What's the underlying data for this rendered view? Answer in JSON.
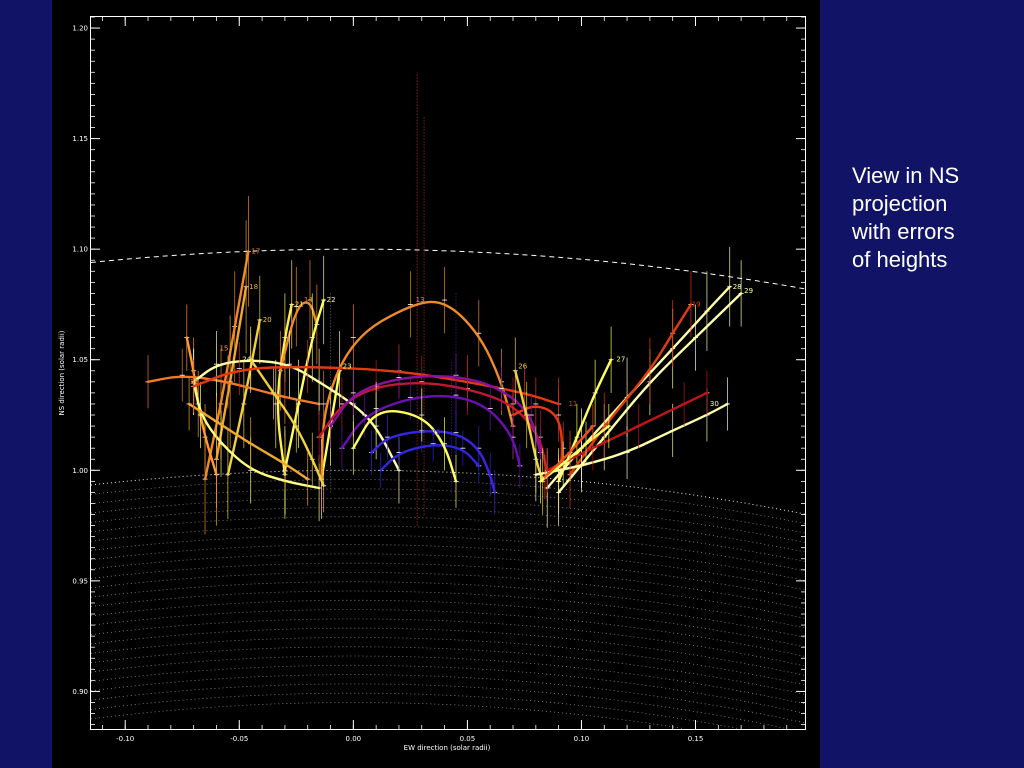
{
  "side_text": [
    "View in NS",
    "projection",
    "with errors",
    "of heights"
  ],
  "colors": {
    "background": "#111466",
    "plot_background": "#000000",
    "axis": "#ffffff",
    "limb": "#ffffff",
    "loop_palette": [
      "#ffffaa",
      "#f0d040",
      "#f08a28",
      "#e33a10",
      "#b01420",
      "#7a10a8",
      "#2e26e0"
    ]
  },
  "chart_data": {
    "type": "line",
    "title": "",
    "xlabel": "EW direction (solar radii)",
    "ylabel": "NS direction (solar radii)",
    "xlim": [
      -0.115,
      0.198
    ],
    "ylim": [
      0.883,
      1.205
    ],
    "x_ticks": [
      {
        "value": -0.1,
        "label": "-0.10"
      },
      {
        "value": -0.05,
        "label": "-0.05"
      },
      {
        "value": 0.0,
        "label": "0.00"
      },
      {
        "value": 0.05,
        "label": "0.05"
      },
      {
        "value": 0.1,
        "label": "0.10"
      },
      {
        "value": 0.15,
        "label": "0.15"
      }
    ],
    "y_ticks": [
      {
        "value": 0.9,
        "label": "0.90"
      },
      {
        "value": 0.95,
        "label": "0.95"
      },
      {
        "value": 1.0,
        "label": "1.00"
      },
      {
        "value": 1.05,
        "label": "1.05"
      },
      {
        "value": 1.1,
        "label": "1.10"
      },
      {
        "value": 1.15,
        "label": "1.15"
      },
      {
        "value": 1.2,
        "label": "1.20"
      }
    ],
    "grid": false,
    "limb_radius": 1.0,
    "reference_radius": 1.1,
    "loops": [
      {
        "label": "17",
        "color": "#f08a28",
        "points": [
          [
            -0.065,
            0.996
          ],
          [
            -0.058,
            1.03
          ],
          [
            -0.052,
            1.065
          ],
          [
            -0.046,
            1.099
          ]
        ],
        "label_at": [
          -0.046,
          1.099
        ],
        "err": 0.025
      },
      {
        "label": "18",
        "color": "#f0a830",
        "points": [
          [
            -0.06,
            1.005
          ],
          [
            -0.054,
            1.04
          ],
          [
            -0.047,
            1.083
          ]
        ],
        "label_at": [
          -0.047,
          1.083
        ],
        "err": 0.03
      },
      {
        "label": "20",
        "color": "#f0d040",
        "points": [
          [
            -0.055,
            0.998
          ],
          [
            -0.048,
            1.03
          ],
          [
            -0.041,
            1.068
          ]
        ],
        "label_at": [
          -0.041,
          1.068
        ],
        "err": 0.02
      },
      {
        "label": "21",
        "color": "#ffee55",
        "points": [
          [
            -0.03,
            0.998
          ],
          [
            -0.034,
            1.03
          ],
          [
            -0.03,
            1.06
          ],
          [
            -0.027,
            1.075
          ]
        ],
        "label_at": [
          -0.027,
          1.075
        ],
        "err": 0.02
      },
      {
        "label": "14",
        "color": "#f08a28",
        "points": [
          [
            -0.032,
            1.045
          ],
          [
            -0.025,
            1.074
          ],
          [
            -0.019,
            1.077
          ],
          [
            -0.016,
            1.066
          ]
        ],
        "label_at": [
          -0.023,
          1.077
        ],
        "err": 0.018
      },
      {
        "label": "22",
        "color": "#ffff60",
        "points": [
          [
            -0.03,
            1.0
          ],
          [
            -0.024,
            1.03
          ],
          [
            -0.018,
            1.06
          ],
          [
            -0.013,
            1.077
          ]
        ],
        "label_at": [
          -0.013,
          1.077
        ],
        "err": 0.02
      },
      {
        "label": "23",
        "color": "#ffff60",
        "points": [
          [
            -0.014,
            0.996
          ],
          [
            -0.01,
            1.02
          ],
          [
            -0.006,
            1.045
          ]
        ],
        "label_at": [
          -0.006,
          1.047
        ],
        "err": 0.018
      },
      {
        "label": "13",
        "color": "#f08a28",
        "points": [
          [
            -0.014,
            0.996
          ],
          [
            -0.013,
            1.03
          ],
          [
            0.0,
            1.06
          ],
          [
            0.025,
            1.075
          ],
          [
            0.04,
            1.077
          ],
          [
            0.055,
            1.062
          ],
          [
            0.065,
            1.04
          ],
          [
            0.07,
            1.02
          ]
        ],
        "label_at": [
          0.026,
          1.077
        ],
        "err": 0.015
      },
      {
        "label": "15",
        "color": "#ff9a30",
        "points": [
          [
            -0.073,
            1.06
          ],
          [
            -0.07,
            1.045
          ],
          [
            -0.068,
            1.03
          ],
          [
            -0.065,
            1.015
          ],
          [
            -0.06,
            0.998
          ]
        ],
        "label_at": [
          -0.06,
          1.055
        ],
        "err": 0.015
      },
      {
        "label": "16",
        "color": "#f07a28",
        "points": [
          [
            -0.09,
            1.04
          ],
          [
            -0.075,
            1.043
          ],
          [
            -0.055,
            1.04
          ],
          [
            -0.03,
            1.033
          ],
          [
            -0.015,
            1.03
          ]
        ],
        "label_at": [
          -0.073,
          1.04
        ],
        "err": 0.012
      },
      {
        "label": "24",
        "color": "#ffffaa",
        "points": [
          [
            -0.07,
            1.04
          ],
          [
            -0.06,
            1.048
          ],
          [
            -0.045,
            1.05
          ],
          [
            -0.028,
            1.048
          ],
          [
            -0.015,
            1.04
          ],
          [
            0.0,
            1.03
          ],
          [
            0.01,
            1.02
          ],
          [
            0.02,
            1.0
          ]
        ],
        "label_at": [
          -0.05,
          1.05
        ],
        "err": 0.015
      },
      {
        "label": "",
        "color": "#ffff80",
        "points": [
          [
            -0.07,
            1.04
          ],
          [
            -0.067,
            1.025
          ],
          [
            -0.058,
            1.012
          ],
          [
            -0.045,
            1.0
          ],
          [
            -0.03,
            0.995
          ],
          [
            -0.015,
            0.992
          ]
        ],
        "label_at": null,
        "err": 0.015
      },
      {
        "label": "",
        "color": "#f0d040",
        "points": [
          [
            -0.045,
            1.05
          ],
          [
            -0.035,
            1.035
          ],
          [
            -0.025,
            1.02
          ],
          [
            -0.018,
            1.005
          ],
          [
            -0.013,
            0.993
          ]
        ],
        "label_at": null,
        "err": 0.012
      },
      {
        "label": "",
        "color": "#f0a830",
        "points": [
          [
            -0.072,
            1.03
          ],
          [
            -0.06,
            1.022
          ],
          [
            -0.045,
            1.012
          ],
          [
            -0.03,
            1.003
          ],
          [
            -0.02,
            0.996
          ]
        ],
        "label_at": null,
        "err": 0.012
      },
      {
        "label": "",
        "color": "#e33a10",
        "points": [
          [
            -0.07,
            1.038
          ],
          [
            -0.05,
            1.046
          ],
          [
            -0.02,
            1.047
          ],
          [
            0.02,
            1.045
          ],
          [
            0.05,
            1.04
          ],
          [
            0.075,
            1.035
          ],
          [
            0.09,
            1.03
          ]
        ],
        "label_at": null,
        "err": 0.012
      },
      {
        "label": "12",
        "color": "#c01830",
        "points": [
          [
            -0.015,
            1.015
          ],
          [
            -0.005,
            1.03
          ],
          [
            0.01,
            1.038
          ],
          [
            0.03,
            1.04
          ],
          [
            0.05,
            1.037
          ],
          [
            0.07,
            1.03
          ],
          [
            0.082,
            1.015
          ],
          [
            0.085,
            0.998
          ]
        ],
        "label_at": [
          0.007,
          1.037
        ],
        "err": 0.012
      },
      {
        "label": "11",
        "color": "#e33a10",
        "points": [
          [
            0.07,
            1.025
          ],
          [
            0.08,
            1.03
          ],
          [
            0.09,
            1.025
          ],
          [
            0.092,
            1.01
          ],
          [
            0.09,
            0.995
          ]
        ],
        "label_at": [
          0.093,
          1.03
        ],
        "err": 0.012
      },
      {
        "label": "",
        "color": "#8a10a0",
        "points": [
          [
            -0.01,
            1.02
          ],
          [
            0.0,
            1.035
          ],
          [
            0.02,
            1.042
          ],
          [
            0.045,
            1.043
          ],
          [
            0.065,
            1.037
          ],
          [
            0.078,
            1.025
          ],
          [
            0.082,
            1.008
          ]
        ],
        "label_at": null,
        "err": 0.01
      },
      {
        "label": "",
        "color": "#6a10b0",
        "points": [
          [
            -0.005,
            1.01
          ],
          [
            0.005,
            1.025
          ],
          [
            0.025,
            1.033
          ],
          [
            0.045,
            1.034
          ],
          [
            0.06,
            1.028
          ],
          [
            0.07,
            1.015
          ],
          [
            0.073,
            1.002
          ]
        ],
        "label_at": null,
        "err": 0.01
      },
      {
        "label": "25",
        "color": "#3a26e0",
        "points": [
          [
            0.008,
            1.008
          ],
          [
            0.015,
            1.015
          ],
          [
            0.03,
            1.018
          ],
          [
            0.045,
            1.017
          ],
          [
            0.055,
            1.01
          ],
          [
            0.06,
            0.998
          ],
          [
            0.062,
            0.99
          ]
        ],
        "label_at": [
          0.033,
          1.017
        ],
        "err": 0.01
      },
      {
        "label": "",
        "color": "#2e26e0",
        "points": [
          [
            0.012,
            1.0
          ],
          [
            0.02,
            1.008
          ],
          [
            0.035,
            1.012
          ],
          [
            0.048,
            1.01
          ],
          [
            0.055,
            1.002
          ]
        ],
        "label_at": null,
        "err": 0.008
      },
      {
        "label": "",
        "color": "#ffff60",
        "points": [
          [
            0.0,
            1.01
          ],
          [
            0.01,
            1.028
          ],
          [
            0.03,
            1.025
          ],
          [
            0.04,
            1.012
          ],
          [
            0.045,
            0.995
          ]
        ],
        "label_at": null,
        "err": 0.012
      },
      {
        "label": "26",
        "color": "#f0d040",
        "points": [
          [
            0.071,
            1.045
          ],
          [
            0.076,
            1.025
          ],
          [
            0.08,
            1.005
          ],
          [
            0.083,
            0.995
          ]
        ],
        "label_at": [
          0.071,
          1.047
        ],
        "err": 0.015
      },
      {
        "label": "27",
        "color": "#ffff60",
        "points": [
          [
            0.09,
            0.995
          ],
          [
            0.098,
            1.015
          ],
          [
            0.106,
            1.035
          ],
          [
            0.113,
            1.05
          ]
        ],
        "label_at": [
          0.114,
          1.05
        ],
        "err": 0.015
      },
      {
        "label": "28",
        "color": "#ffffaa",
        "points": [
          [
            0.085,
            0.992
          ],
          [
            0.1,
            1.01
          ],
          [
            0.12,
            1.033
          ],
          [
            0.14,
            1.055
          ],
          [
            0.155,
            1.072
          ],
          [
            0.165,
            1.083
          ]
        ],
        "label_at": [
          0.165,
          1.083
        ],
        "err": 0.018
      },
      {
        "label": "29",
        "color": "#ffffaa",
        "points": [
          [
            0.09,
            0.99
          ],
          [
            0.11,
            1.015
          ],
          [
            0.13,
            1.04
          ],
          [
            0.15,
            1.06
          ],
          [
            0.17,
            1.08
          ]
        ],
        "label_at": [
          0.17,
          1.081
        ],
        "err": 0.015
      },
      {
        "label": "19",
        "color": "#e33a10",
        "points": [
          [
            0.095,
            0.998
          ],
          [
            0.11,
            1.02
          ],
          [
            0.13,
            1.045
          ],
          [
            0.14,
            1.062
          ],
          [
            0.148,
            1.075
          ]
        ],
        "label_at": [
          0.147,
          1.075
        ],
        "err": 0.015
      },
      {
        "label": "30",
        "color": "#ffffaa",
        "points": [
          [
            0.08,
            0.998
          ],
          [
            0.1,
            1.002
          ],
          [
            0.12,
            1.008
          ],
          [
            0.14,
            1.018
          ],
          [
            0.155,
            1.025
          ],
          [
            0.164,
            1.03
          ]
        ],
        "label_at": [
          0.155,
          1.03
        ],
        "err": 0.012
      },
      {
        "label": "",
        "color": "#c01418",
        "points": [
          [
            0.085,
            1.0
          ],
          [
            0.105,
            1.01
          ],
          [
            0.125,
            1.02
          ],
          [
            0.145,
            1.03
          ],
          [
            0.155,
            1.035
          ]
        ],
        "label_at": null,
        "err": 0.01
      },
      {
        "label": "",
        "color": "#ffff60",
        "points": [
          [
            0.082,
            0.995
          ],
          [
            0.092,
            1.003
          ],
          [
            0.102,
            1.012
          ],
          [
            0.112,
            1.02
          ]
        ],
        "label_at": null,
        "err": 0.01
      },
      {
        "label": "",
        "color": "#f05020",
        "points": [
          [
            0.084,
            0.997
          ],
          [
            0.095,
            1.008
          ],
          [
            0.105,
            1.02
          ]
        ],
        "label_at": null,
        "err": 0.01
      }
    ],
    "vertical_markers": [
      {
        "x": 0.028,
        "y0": 0.975,
        "y1": 1.18,
        "color": "#c03030"
      },
      {
        "x": 0.031,
        "y0": 0.98,
        "y1": 1.16,
        "color": "#c03030"
      },
      {
        "x": 0.043,
        "y0": 0.99,
        "y1": 1.05,
        "color": "#303090"
      },
      {
        "x": 0.045,
        "y0": 0.99,
        "y1": 1.08,
        "color": "#303090"
      },
      {
        "x": -0.01,
        "y0": 0.99,
        "y1": 1.08,
        "color": "#606060"
      }
    ]
  }
}
